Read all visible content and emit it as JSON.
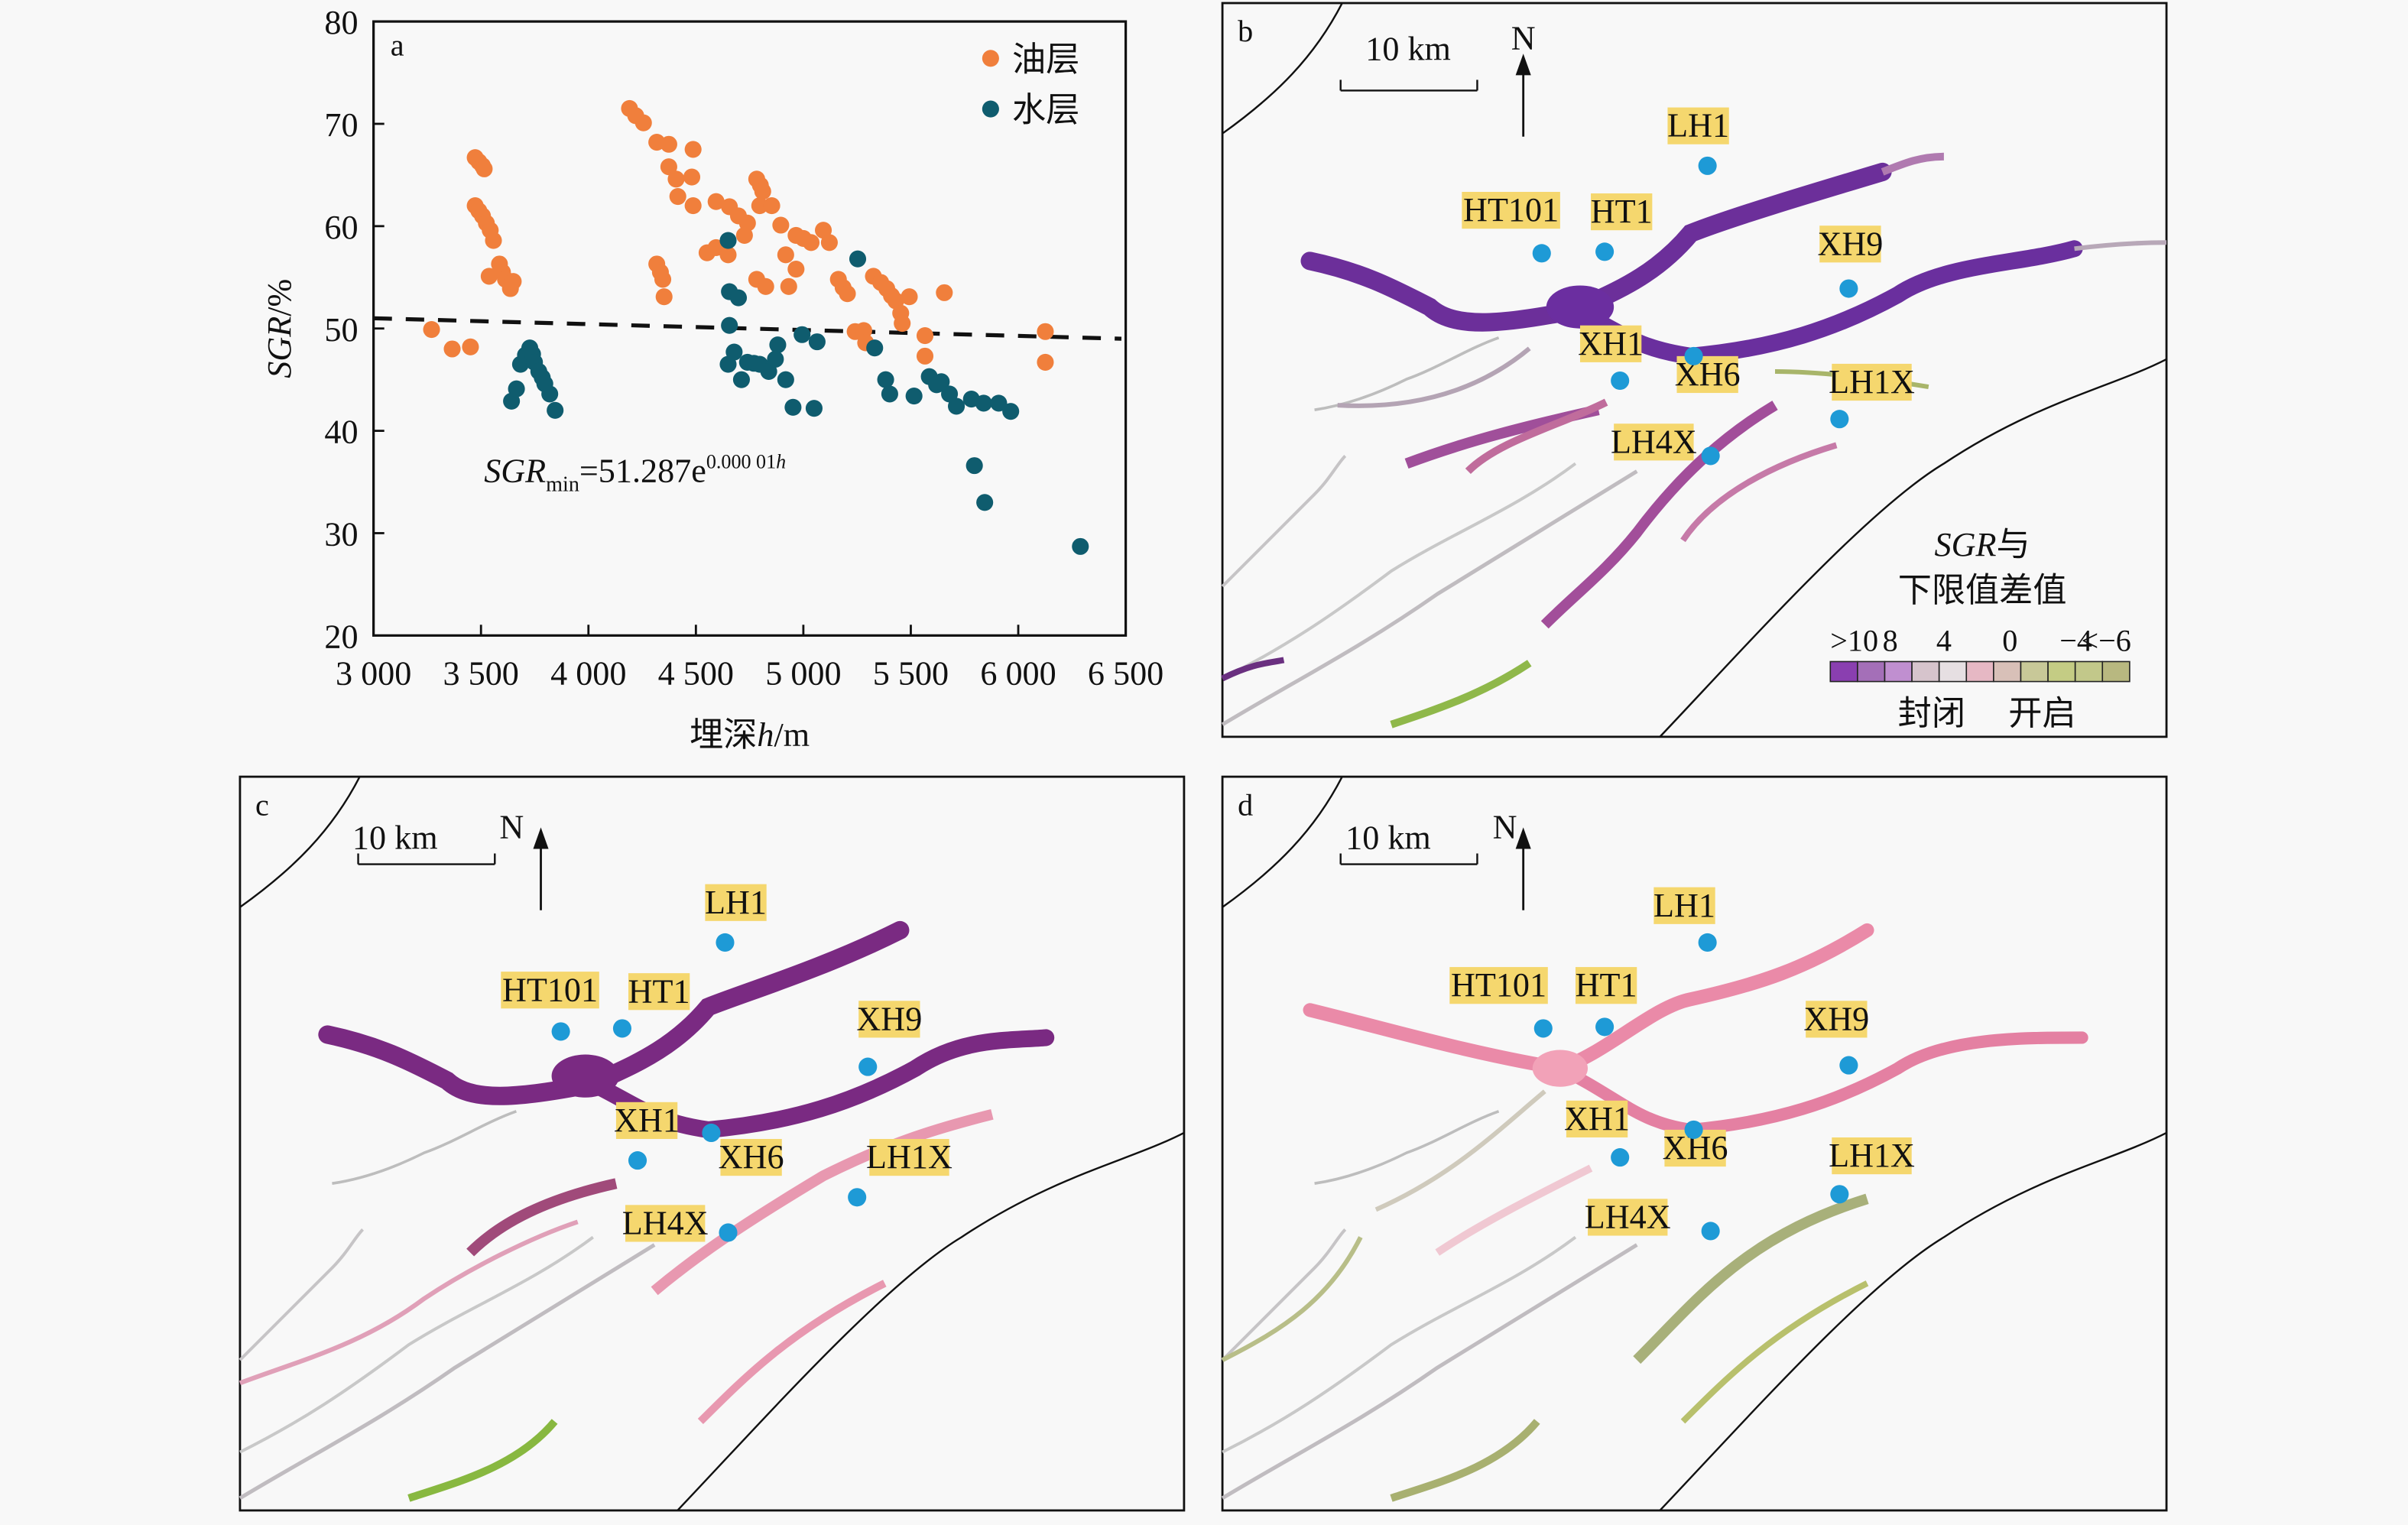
{
  "panel_a": {
    "label": "a",
    "chart_data": {
      "type": "scatter",
      "title": "",
      "xlabel": "埋深h/m",
      "xlabel_parts": {
        "prefix": "埋深",
        "var": "h",
        "unit": "/m"
      },
      "ylabel": "SGR/%",
      "ylabel_parts": {
        "var": "SGR",
        "unit": "/%"
      },
      "xlim": [
        3000,
        6500
      ],
      "ylim": [
        20,
        80
      ],
      "xticks": [
        3000,
        3500,
        4000,
        4500,
        5000,
        5500,
        6000,
        6500
      ],
      "xtick_labels": [
        "3 000",
        "3 500",
        "4 000",
        "4 500",
        "5 000",
        "5 500",
        "6 000",
        "6 500"
      ],
      "yticks": [
        20,
        30,
        40,
        50,
        60,
        70,
        80
      ],
      "ytick_labels": [
        "20",
        "30",
        "40",
        "50",
        "60",
        "70",
        "80"
      ],
      "grid": false,
      "legend_position": "top-right",
      "series": [
        {
          "name": "油层",
          "color": "#f07f3c",
          "points": [
            [
              3270,
              49.9
            ],
            [
              3366,
              48.0
            ],
            [
              3451,
              48.2
            ],
            [
              3473,
              66.7
            ],
            [
              3490,
              66.3
            ],
            [
              3507,
              65.9
            ],
            [
              3515,
              65.6
            ],
            [
              3473,
              62.0
            ],
            [
              3490,
              61.5
            ],
            [
              3507,
              61.0
            ],
            [
              3525,
              60.3
            ],
            [
              3543,
              59.6
            ],
            [
              3558,
              58.6
            ],
            [
              3538,
              55.1
            ],
            [
              3586,
              56.3
            ],
            [
              3600,
              55.5
            ],
            [
              3614,
              54.8
            ],
            [
              3637,
              53.9
            ],
            [
              3650,
              54.6
            ],
            [
              4191,
              71.5
            ],
            [
              4220,
              70.8
            ],
            [
              4256,
              70.1
            ],
            [
              4318,
              68.2
            ],
            [
              4374,
              68.0
            ],
            [
              4487,
              67.5
            ],
            [
              4374,
              65.8
            ],
            [
              4408,
              64.6
            ],
            [
              4481,
              64.8
            ],
            [
              4416,
              62.9
            ],
            [
              4487,
              62.0
            ],
            [
              4318,
              56.3
            ],
            [
              4335,
              55.5
            ],
            [
              4346,
              54.8
            ],
            [
              4352,
              53.1
            ],
            [
              4594,
              62.4
            ],
            [
              4656,
              61.9
            ],
            [
              4698,
              61.0
            ],
            [
              4740,
              60.3
            ],
            [
              4726,
              59.1
            ],
            [
              4552,
              57.4
            ],
            [
              4594,
              57.9
            ],
            [
              4650,
              57.2
            ],
            [
              4783,
              64.6
            ],
            [
              4800,
              64.0
            ],
            [
              4811,
              63.4
            ],
            [
              4797,
              62.0
            ],
            [
              4853,
              62.0
            ],
            [
              4895,
              60.1
            ],
            [
              4966,
              59.1
            ],
            [
              5000,
              58.8
            ],
            [
              5036,
              58.4
            ],
            [
              5093,
              59.6
            ],
            [
              5121,
              58.4
            ],
            [
              4783,
              54.8
            ],
            [
              4825,
              54.1
            ],
            [
              4918,
              57.2
            ],
            [
              4966,
              55.8
            ],
            [
              4932,
              54.1
            ],
            [
              5163,
              54.8
            ],
            [
              5185,
              54.0
            ],
            [
              5205,
              53.4
            ],
            [
              5326,
              55.1
            ],
            [
              5360,
              54.5
            ],
            [
              5388,
              53.9
            ],
            [
              5410,
              53.2
            ],
            [
              5430,
              52.7
            ],
            [
              5453,
              51.5
            ],
            [
              5460,
              50.5
            ],
            [
              5493,
              53.1
            ],
            [
              5241,
              49.7
            ],
            [
              5281,
              49.8
            ],
            [
              5290,
              48.6
            ],
            [
              5566,
              49.3
            ],
            [
              5566,
              47.3
            ],
            [
              5656,
              53.5
            ],
            [
              6126,
              49.7
            ],
            [
              6126,
              46.7
            ]
          ]
        },
        {
          "name": "水层",
          "color": "#0f5c6e",
          "points": [
            [
              3642,
              42.9
            ],
            [
              3665,
              44.1
            ],
            [
              3684,
              46.5
            ],
            [
              3707,
              47.4
            ],
            [
              3727,
              48.1
            ],
            [
              3740,
              47.5
            ],
            [
              3749,
              46.7
            ],
            [
              3769,
              45.8
            ],
            [
              3785,
              45.2
            ],
            [
              3797,
              44.6
            ],
            [
              3820,
              43.6
            ],
            [
              3845,
              42.0
            ],
            [
              4650,
              58.6
            ],
            [
              4656,
              53.6
            ],
            [
              4698,
              53.0
            ],
            [
              4656,
              50.3
            ],
            [
              4650,
              46.5
            ],
            [
              4678,
              47.7
            ],
            [
              4712,
              45.0
            ],
            [
              4740,
              46.7
            ],
            [
              4770,
              46.6
            ],
            [
              4797,
              46.5
            ],
            [
              4839,
              45.8
            ],
            [
              4881,
              48.4
            ],
            [
              4870,
              47.0
            ],
            [
              4918,
              45.0
            ],
            [
              4952,
              42.3
            ],
            [
              4994,
              49.4
            ],
            [
              5050,
              42.2
            ],
            [
              5064,
              48.7
            ],
            [
              5253,
              56.8
            ],
            [
              5332,
              48.1
            ],
            [
              5383,
              45.0
            ],
            [
              5402,
              43.6
            ],
            [
              5515,
              43.4
            ],
            [
              5586,
              45.3
            ],
            [
              5620,
              44.5
            ],
            [
              5642,
              44.8
            ],
            [
              5680,
              43.6
            ],
            [
              5712,
              42.4
            ],
            [
              5782,
              43.1
            ],
            [
              5839,
              42.7
            ],
            [
              5909,
              42.7
            ],
            [
              5965,
              41.9
            ],
            [
              5796,
              36.6
            ],
            [
              5844,
              33.0
            ],
            [
              6289,
              28.7
            ]
          ]
        }
      ],
      "trend_line": {
        "style": "dashed",
        "color": "#111111",
        "equation": {
          "lhs": "SGR",
          "sub": "min",
          "rhs": "=51.287e",
          "exp": "0.000 01",
          "exp_var": "h"
        },
        "points": [
          [
            3000,
            51.0
          ],
          [
            6480,
            49.0
          ]
        ]
      }
    }
  },
  "maps": {
    "scale_label": "10 km",
    "north_label": "N",
    "wells": [
      "LH1",
      "HT101",
      "HT1",
      "XH9",
      "XH1",
      "XH6",
      "LH1X",
      "LH4X"
    ],
    "well_color": "#1e9ad6",
    "label_bg": "#f5d76e"
  },
  "panel_b": {
    "label": "b",
    "legend": {
      "title_var": "SGR",
      "title_suffix": "与",
      "title_line2": "下限值差值",
      "ticks": [
        ">10",
        "8",
        "4",
        "0",
        "−4",
        "<−6"
      ],
      "colors": [
        "#8a3fb0",
        "#a46fb8",
        "#c08fd0",
        "#d6c4cc",
        "#e6dfe2",
        "#e6b8c4",
        "#d8c0b8",
        "#c8c898",
        "#c4cc84",
        "#c2c88a",
        "#b8b880"
      ],
      "left_caption": "封闭",
      "right_caption": "开启"
    }
  },
  "panel_c": {
    "label": "c"
  },
  "panel_d": {
    "label": "d"
  }
}
